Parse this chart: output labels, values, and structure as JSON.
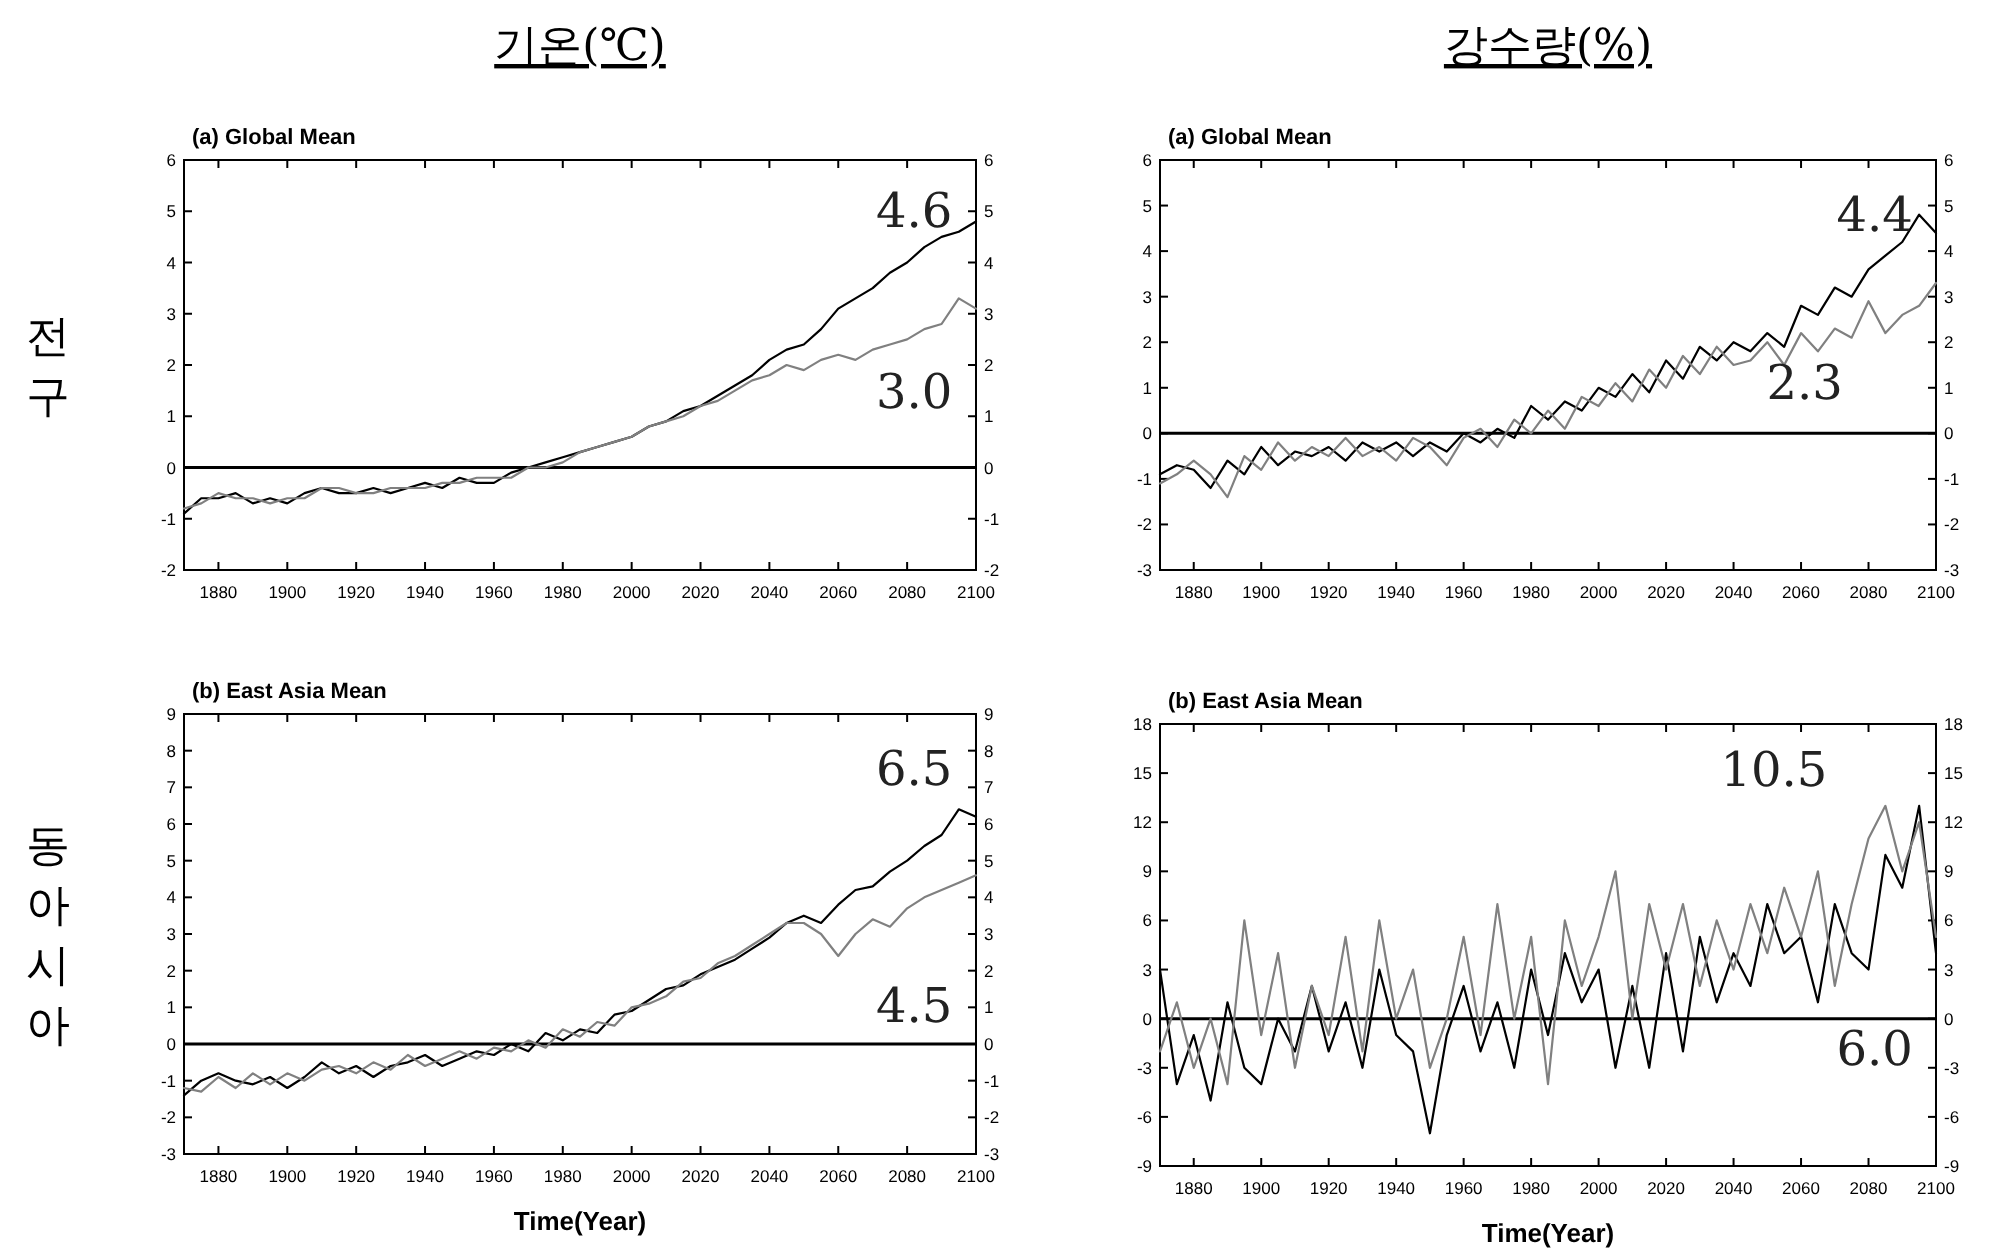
{
  "chart_data": [
    {
      "type": "line",
      "title": "기온(℃)",
      "subtitle": "(a) Global Mean",
      "ylabel": "전구",
      "x": [
        1870,
        1875,
        1880,
        1885,
        1890,
        1895,
        1900,
        1905,
        1910,
        1915,
        1920,
        1925,
        1930,
        1935,
        1940,
        1945,
        1950,
        1955,
        1960,
        1965,
        1970,
        1975,
        1980,
        1985,
        1990,
        1995,
        2000,
        2005,
        2010,
        2015,
        2020,
        2025,
        2030,
        2035,
        2040,
        2045,
        2050,
        2055,
        2060,
        2065,
        2070,
        2075,
        2080,
        2085,
        2090,
        2095,
        2100
      ],
      "xlim": [
        1870,
        2100
      ],
      "xticks": [
        1880,
        1900,
        1920,
        1940,
        1960,
        1980,
        2000,
        2020,
        2040,
        2060,
        2080,
        2100
      ],
      "ylim": [
        -2,
        6
      ],
      "yticks": [
        -2,
        -1,
        0,
        1,
        2,
        3,
        4,
        5,
        6
      ],
      "y2lim": [
        -2,
        6
      ],
      "y2ticks": [
        -2,
        -1,
        0,
        1,
        2,
        3,
        4,
        5,
        6
      ],
      "ref_lines": [
        {
          "axis": "y",
          "value": 0,
          "color": "#000000"
        }
      ],
      "annotations": [
        "4.6",
        "3.0"
      ],
      "series": [
        {
          "color": "#000000",
          "values": [
            -0.9,
            -0.6,
            -0.6,
            -0.5,
            -0.7,
            -0.6,
            -0.7,
            -0.5,
            -0.4,
            -0.5,
            -0.5,
            -0.4,
            -0.5,
            -0.4,
            -0.3,
            -0.4,
            -0.2,
            -0.3,
            -0.3,
            -0.1,
            0.0,
            0.1,
            0.2,
            0.3,
            0.4,
            0.5,
            0.6,
            0.8,
            0.9,
            1.1,
            1.2,
            1.4,
            1.6,
            1.8,
            2.1,
            2.3,
            2.4,
            2.7,
            3.1,
            3.3,
            3.5,
            3.8,
            4.0,
            4.3,
            4.5,
            4.6,
            4.8
          ]
        },
        {
          "color": "#808080",
          "values": [
            -0.8,
            -0.7,
            -0.5,
            -0.6,
            -0.6,
            -0.7,
            -0.6,
            -0.6,
            -0.4,
            -0.4,
            -0.5,
            -0.5,
            -0.4,
            -0.4,
            -0.4,
            -0.3,
            -0.3,
            -0.2,
            -0.2,
            -0.2,
            0.0,
            0.0,
            0.1,
            0.3,
            0.4,
            0.5,
            0.6,
            0.8,
            0.9,
            1.0,
            1.2,
            1.3,
            1.5,
            1.7,
            1.8,
            2.0,
            1.9,
            2.1,
            2.2,
            2.1,
            2.3,
            2.4,
            2.5,
            2.7,
            2.8,
            3.3,
            3.1
          ]
        }
      ]
    },
    {
      "type": "line",
      "title": "강수량(%)",
      "subtitle": "(a) Global Mean",
      "x": [
        1870,
        1875,
        1880,
        1885,
        1890,
        1895,
        1900,
        1905,
        1910,
        1915,
        1920,
        1925,
        1930,
        1935,
        1940,
        1945,
        1950,
        1955,
        1960,
        1965,
        1970,
        1975,
        1980,
        1985,
        1990,
        1995,
        2000,
        2005,
        2010,
        2015,
        2020,
        2025,
        2030,
        2035,
        2040,
        2045,
        2050,
        2055,
        2060,
        2065,
        2070,
        2075,
        2080,
        2085,
        2090,
        2095,
        2100
      ],
      "xlim": [
        1870,
        2100
      ],
      "xticks": [
        1880,
        1900,
        1920,
        1940,
        1960,
        1980,
        2000,
        2020,
        2040,
        2060,
        2080,
        2100
      ],
      "ylim": [
        -3,
        6
      ],
      "yticks": [
        -3,
        -2,
        -1,
        0,
        1,
        2,
        3,
        4,
        5,
        6
      ],
      "y2lim": [
        -3,
        6
      ],
      "y2ticks": [
        -3,
        -2,
        -1,
        0,
        1,
        2,
        3,
        4,
        5,
        6
      ],
      "ref_lines": [
        {
          "axis": "y",
          "value": 0,
          "color": "#000000"
        }
      ],
      "annotations": [
        "4.4",
        "2.3"
      ],
      "series": [
        {
          "color": "#000000",
          "values": [
            -0.9,
            -0.7,
            -0.8,
            -1.2,
            -0.6,
            -0.9,
            -0.3,
            -0.7,
            -0.4,
            -0.5,
            -0.3,
            -0.6,
            -0.2,
            -0.4,
            -0.2,
            -0.5,
            -0.2,
            -0.4,
            0.0,
            -0.2,
            0.1,
            -0.1,
            0.6,
            0.3,
            0.7,
            0.5,
            1.0,
            0.8,
            1.3,
            0.9,
            1.6,
            1.2,
            1.9,
            1.6,
            2.0,
            1.8,
            2.2,
            1.9,
            2.8,
            2.6,
            3.2,
            3.0,
            3.6,
            3.9,
            4.2,
            4.8,
            4.4
          ]
        },
        {
          "color": "#808080",
          "values": [
            -1.1,
            -0.9,
            -0.6,
            -0.9,
            -1.4,
            -0.5,
            -0.8,
            -0.2,
            -0.6,
            -0.3,
            -0.5,
            -0.1,
            -0.5,
            -0.3,
            -0.6,
            -0.1,
            -0.3,
            -0.7,
            -0.1,
            0.1,
            -0.3,
            0.3,
            0.0,
            0.5,
            0.1,
            0.8,
            0.6,
            1.1,
            0.7,
            1.4,
            1.0,
            1.7,
            1.3,
            1.9,
            1.5,
            1.6,
            2.0,
            1.5,
            2.2,
            1.8,
            2.3,
            2.1,
            2.9,
            2.2,
            2.6,
            2.8,
            3.3
          ]
        }
      ]
    },
    {
      "type": "line",
      "subtitle": "(b) East Asia Mean",
      "ylabel": "동아시아",
      "xlabel": "Time(Year)",
      "x": [
        1870,
        1875,
        1880,
        1885,
        1890,
        1895,
        1900,
        1905,
        1910,
        1915,
        1920,
        1925,
        1930,
        1935,
        1940,
        1945,
        1950,
        1955,
        1960,
        1965,
        1970,
        1975,
        1980,
        1985,
        1990,
        1995,
        2000,
        2005,
        2010,
        2015,
        2020,
        2025,
        2030,
        2035,
        2040,
        2045,
        2050,
        2055,
        2060,
        2065,
        2070,
        2075,
        2080,
        2085,
        2090,
        2095,
        2100
      ],
      "xlim": [
        1870,
        2100
      ],
      "xticks": [
        1880,
        1900,
        1920,
        1940,
        1960,
        1980,
        2000,
        2020,
        2040,
        2060,
        2080,
        2100
      ],
      "ylim": [
        -3,
        9
      ],
      "yticks": [
        -3,
        -2,
        -1,
        0,
        1,
        2,
        3,
        4,
        5,
        6,
        7,
        8,
        9
      ],
      "y2lim": [
        -3,
        9
      ],
      "y2ticks": [
        -3,
        -2,
        -1,
        0,
        1,
        2,
        3,
        4,
        5,
        6,
        7,
        8,
        9
      ],
      "ref_lines": [
        {
          "axis": "y",
          "value": 0,
          "color": "#000000"
        }
      ],
      "annotations": [
        "6.5",
        "4.5"
      ],
      "series": [
        {
          "color": "#000000",
          "values": [
            -1.4,
            -1.0,
            -0.8,
            -1.0,
            -1.1,
            -0.9,
            -1.2,
            -0.9,
            -0.5,
            -0.8,
            -0.6,
            -0.9,
            -0.6,
            -0.5,
            -0.3,
            -0.6,
            -0.4,
            -0.2,
            -0.3,
            0.0,
            -0.2,
            0.3,
            0.1,
            0.4,
            0.3,
            0.8,
            0.9,
            1.2,
            1.5,
            1.6,
            1.9,
            2.1,
            2.3,
            2.6,
            2.9,
            3.3,
            3.5,
            3.3,
            3.8,
            4.2,
            4.3,
            4.7,
            5.0,
            5.4,
            5.7,
            6.4,
            6.2
          ]
        },
        {
          "color": "#808080",
          "values": [
            -1.2,
            -1.3,
            -0.9,
            -1.2,
            -0.8,
            -1.1,
            -0.8,
            -1.0,
            -0.7,
            -0.6,
            -0.8,
            -0.5,
            -0.7,
            -0.3,
            -0.6,
            -0.4,
            -0.2,
            -0.4,
            -0.1,
            -0.2,
            0.1,
            -0.1,
            0.4,
            0.2,
            0.6,
            0.5,
            1.0,
            1.1,
            1.3,
            1.7,
            1.8,
            2.2,
            2.4,
            2.7,
            3.0,
            3.3,
            3.3,
            3.0,
            2.4,
            3.0,
            3.4,
            3.2,
            3.7,
            4.0,
            4.2,
            4.4,
            4.6
          ]
        }
      ]
    },
    {
      "type": "line",
      "subtitle": "(b) East Asia Mean",
      "xlabel": "Time(Year)",
      "x": [
        1870,
        1875,
        1880,
        1885,
        1890,
        1895,
        1900,
        1905,
        1910,
        1915,
        1920,
        1925,
        1930,
        1935,
        1940,
        1945,
        1950,
        1955,
        1960,
        1965,
        1970,
        1975,
        1980,
        1985,
        1990,
        1995,
        2000,
        2005,
        2010,
        2015,
        2020,
        2025,
        2030,
        2035,
        2040,
        2045,
        2050,
        2055,
        2060,
        2065,
        2070,
        2075,
        2080,
        2085,
        2090,
        2095,
        2100
      ],
      "xlim": [
        1870,
        2100
      ],
      "xticks": [
        1880,
        1900,
        1920,
        1940,
        1960,
        1980,
        2000,
        2020,
        2040,
        2060,
        2080,
        2100
      ],
      "ylim": [
        -9,
        18
      ],
      "yticks": [
        -9,
        -6,
        -3,
        0,
        3,
        6,
        9,
        12,
        15,
        18
      ],
      "y2lim": [
        -9,
        18
      ],
      "y2ticks": [
        -9,
        -6,
        -3,
        0,
        3,
        6,
        9,
        12,
        15,
        18
      ],
      "ref_lines": [
        {
          "axis": "y",
          "value": 0,
          "color": "#000000"
        }
      ],
      "annotations": [
        "10.5",
        "6.0"
      ],
      "series": [
        {
          "color": "#000000",
          "values": [
            3,
            -4,
            -1,
            -5,
            1,
            -3,
            -4,
            0,
            -2,
            2,
            -2,
            1,
            -3,
            3,
            -1,
            -2,
            -7,
            -1,
            2,
            -2,
            1,
            -3,
            3,
            -1,
            4,
            1,
            3,
            -3,
            2,
            -3,
            4,
            -2,
            5,
            1,
            4,
            2,
            7,
            4,
            5,
            1,
            7,
            4,
            3,
            10,
            8,
            13,
            4
          ]
        },
        {
          "color": "#808080",
          "values": [
            -2,
            1,
            -3,
            0,
            -4,
            6,
            -1,
            4,
            -3,
            2,
            -1,
            5,
            -2,
            6,
            0,
            3,
            -3,
            0,
            5,
            -1,
            7,
            0,
            5,
            -4,
            6,
            2,
            5,
            9,
            0,
            7,
            3,
            7,
            2,
            6,
            3,
            7,
            4,
            8,
            5,
            9,
            2,
            7,
            11,
            13,
            9,
            12,
            5
          ]
        }
      ]
    }
  ]
}
